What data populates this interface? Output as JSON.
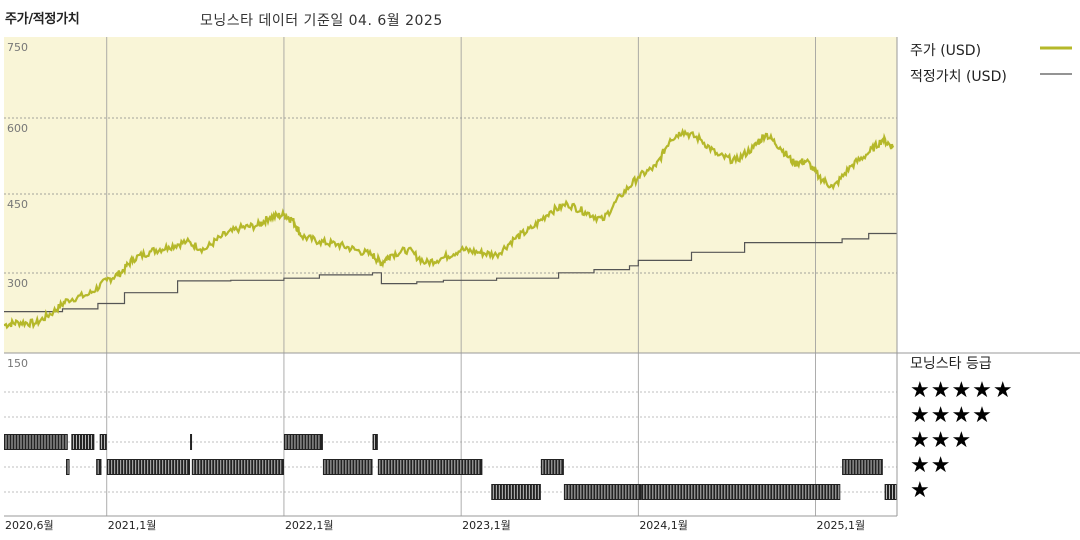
{
  "header": {
    "title": "주가/적정가치",
    "subtitle": "모닝스타 데이터 기준일 04. 6월 2025"
  },
  "legend": {
    "price_label": "주가 (USD)",
    "fair_value_label": "적정가치 (USD)",
    "price_color": "#b5b82a",
    "fair_value_color": "#555555"
  },
  "rating": {
    "title": "모닝스타 등급",
    "rows": [
      "★★★★★",
      "★★★★",
      "★★★",
      "★★",
      "★"
    ]
  },
  "chart_data": {
    "type": "line",
    "title": "주가/적정가치",
    "y_ticks": [
      "750",
      "600",
      "450",
      "300",
      "150"
    ],
    "ylim": [
      150,
      750
    ],
    "x_ticks": [
      {
        "label": "2020,6월",
        "t": 2020.42
      },
      {
        "label": "2021,1월",
        "t": 2021.0
      },
      {
        "label": "2022,1월",
        "t": 2022.0
      },
      {
        "label": "2023,1월",
        "t": 2023.0
      },
      {
        "label": "2024,1월",
        "t": 2024.0
      },
      {
        "label": "2025,1월",
        "t": 2025.0
      }
    ],
    "xlim": [
      2020.42,
      2025.46
    ],
    "series": [
      {
        "name": "주가 (USD)",
        "points": [
          [
            2020.42,
            215
          ],
          [
            2020.5,
            220
          ],
          [
            2020.6,
            218
          ],
          [
            2020.7,
            240
          ],
          [
            2020.78,
            262
          ],
          [
            2020.9,
            272
          ],
          [
            2021.0,
            298
          ],
          [
            2021.08,
            312
          ],
          [
            2021.15,
            338
          ],
          [
            2021.25,
            352
          ],
          [
            2021.35,
            360
          ],
          [
            2021.45,
            370
          ],
          [
            2021.55,
            355
          ],
          [
            2021.65,
            380
          ],
          [
            2021.75,
            395
          ],
          [
            2021.85,
            400
          ],
          [
            2021.92,
            415
          ],
          [
            2022.0,
            420
          ],
          [
            2022.05,
            410
          ],
          [
            2022.1,
            380
          ],
          [
            2022.2,
            370
          ],
          [
            2022.3,
            365
          ],
          [
            2022.4,
            355
          ],
          [
            2022.5,
            345
          ],
          [
            2022.55,
            330
          ],
          [
            2022.6,
            345
          ],
          [
            2022.7,
            355
          ],
          [
            2022.8,
            330
          ],
          [
            2022.9,
            340
          ],
          [
            2023.0,
            355
          ],
          [
            2023.1,
            350
          ],
          [
            2023.2,
            345
          ],
          [
            2023.3,
            375
          ],
          [
            2023.4,
            395
          ],
          [
            2023.5,
            425
          ],
          [
            2023.6,
            440
          ],
          [
            2023.7,
            425
          ],
          [
            2023.8,
            410
          ],
          [
            2023.9,
            455
          ],
          [
            2024.0,
            490
          ],
          [
            2024.1,
            510
          ],
          [
            2024.18,
            560
          ],
          [
            2024.25,
            575
          ],
          [
            2024.35,
            560
          ],
          [
            2024.45,
            530
          ],
          [
            2024.55,
            520
          ],
          [
            2024.65,
            545
          ],
          [
            2024.72,
            570
          ],
          [
            2024.8,
            545
          ],
          [
            2024.88,
            515
          ],
          [
            2024.95,
            520
          ],
          [
            2025.02,
            490
          ],
          [
            2025.1,
            470
          ],
          [
            2025.2,
            510
          ],
          [
            2025.3,
            535
          ],
          [
            2025.38,
            560
          ],
          [
            2025.44,
            545
          ]
        ]
      },
      {
        "name": "적정가치 (USD)",
        "steps": [
          [
            2020.42,
            240
          ],
          [
            2020.75,
            245
          ],
          [
            2020.95,
            255
          ],
          [
            2021.1,
            275
          ],
          [
            2021.4,
            297
          ],
          [
            2021.7,
            298
          ],
          [
            2022.0,
            302
          ],
          [
            2022.2,
            308
          ],
          [
            2022.5,
            312
          ],
          [
            2022.55,
            292
          ],
          [
            2022.75,
            295
          ],
          [
            2022.9,
            298
          ],
          [
            2023.2,
            302
          ],
          [
            2023.55,
            312
          ],
          [
            2023.75,
            318
          ],
          [
            2023.95,
            325
          ],
          [
            2024.0,
            335
          ],
          [
            2024.3,
            350
          ],
          [
            2024.6,
            368
          ],
          [
            2024.9,
            368
          ],
          [
            2025.15,
            375
          ],
          [
            2025.3,
            385
          ],
          [
            2025.46,
            385
          ]
        ]
      }
    ],
    "rating_bars": [
      {
        "stars": 3,
        "ranges": [
          [
            2020.42,
            2020.78
          ],
          [
            2020.8,
            2020.93
          ],
          [
            2020.96,
            2021.0
          ],
          [
            2021.47,
            2021.48
          ],
          [
            2022.0,
            2022.22
          ],
          [
            2022.5,
            2022.53
          ]
        ]
      },
      {
        "stars": 2,
        "ranges": [
          [
            2020.77,
            2020.79
          ],
          [
            2020.94,
            2020.97
          ],
          [
            2021.0,
            2021.47
          ],
          [
            2021.48,
            2022.0
          ],
          [
            2022.22,
            2022.5
          ],
          [
            2022.53,
            2023.12
          ],
          [
            2023.45,
            2023.58
          ],
          [
            2025.15,
            2025.38
          ]
        ]
      },
      {
        "stars": 1,
        "ranges": [
          [
            2023.17,
            2023.45
          ],
          [
            2023.58,
            2024.02
          ],
          [
            2024.02,
            2025.14
          ],
          [
            2025.39,
            2025.46
          ]
        ]
      }
    ]
  }
}
